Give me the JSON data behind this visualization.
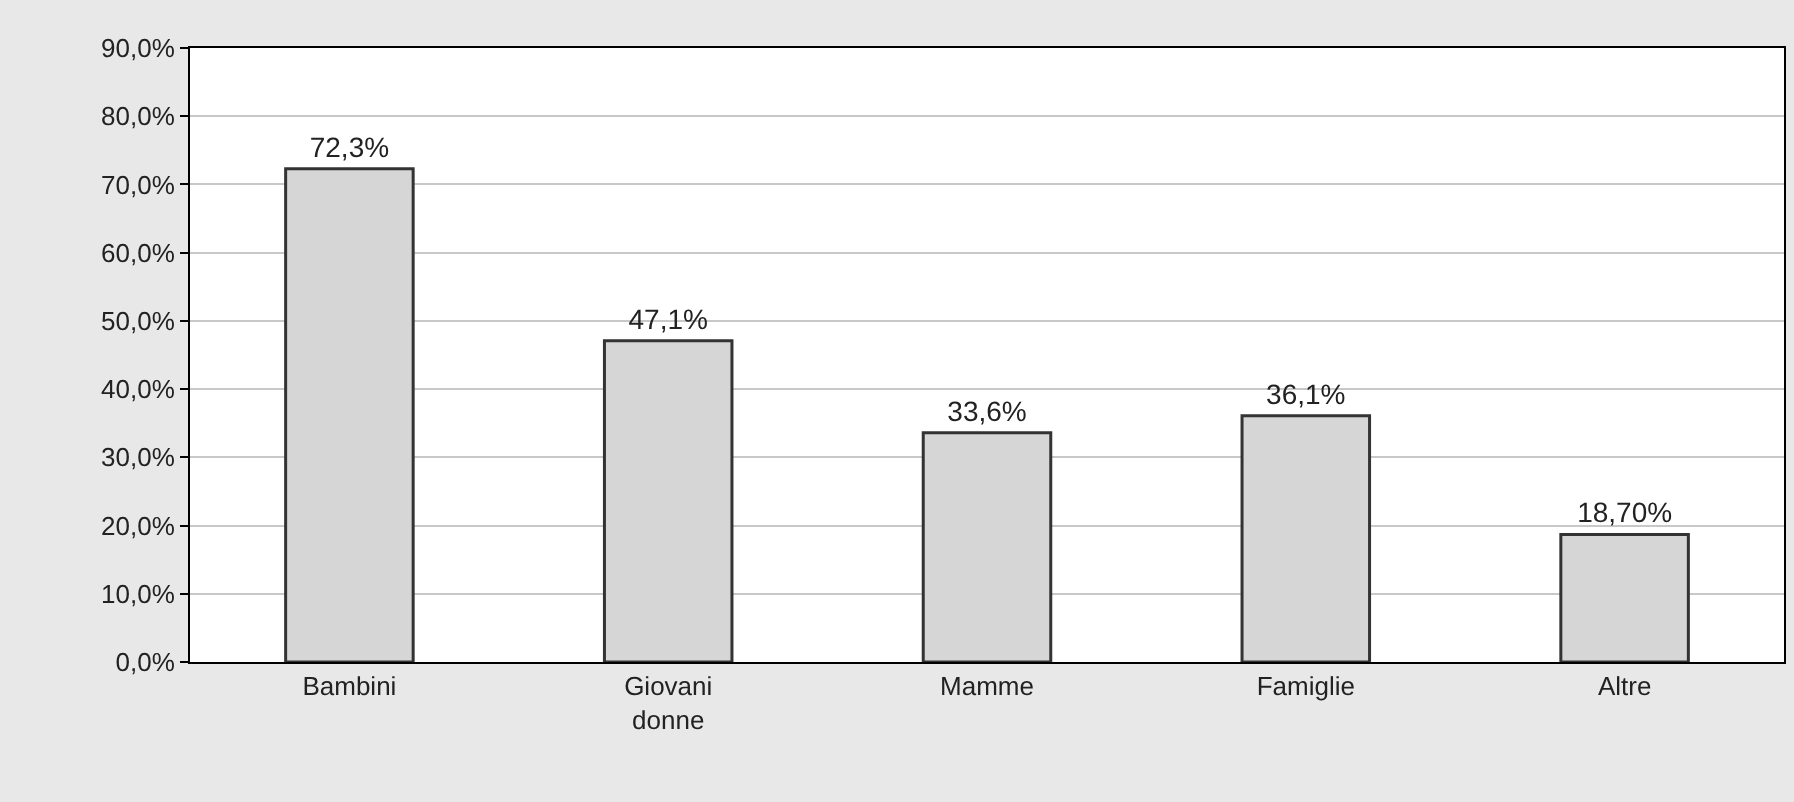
{
  "chart_data": {
    "type": "bar",
    "categories": [
      "Bambini",
      "Giovani donne",
      "Mamme",
      "Famiglie",
      "Altre"
    ],
    "values": [
      72.3,
      47.1,
      33.6,
      36.1,
      18.7
    ],
    "value_labels": [
      "72,3%",
      "47,1%",
      "33,6%",
      "36,1%",
      "18,70%"
    ],
    "color": "#d6d6d6",
    "ylim": [
      0,
      90
    ],
    "yticks": [
      {
        "value": 0,
        "label": "0,0%"
      },
      {
        "value": 10,
        "label": "10,0%"
      },
      {
        "value": 20,
        "label": "20,0%"
      },
      {
        "value": 30,
        "label": "30,0%"
      },
      {
        "value": 40,
        "label": "40,0%"
      },
      {
        "value": 50,
        "label": "50,0%"
      },
      {
        "value": 60,
        "label": "60,0%"
      },
      {
        "value": 70,
        "label": "70,0%"
      },
      {
        "value": 80,
        "label": "80,0%"
      },
      {
        "value": 90,
        "label": "90,0%"
      }
    ],
    "grid": "y"
  }
}
